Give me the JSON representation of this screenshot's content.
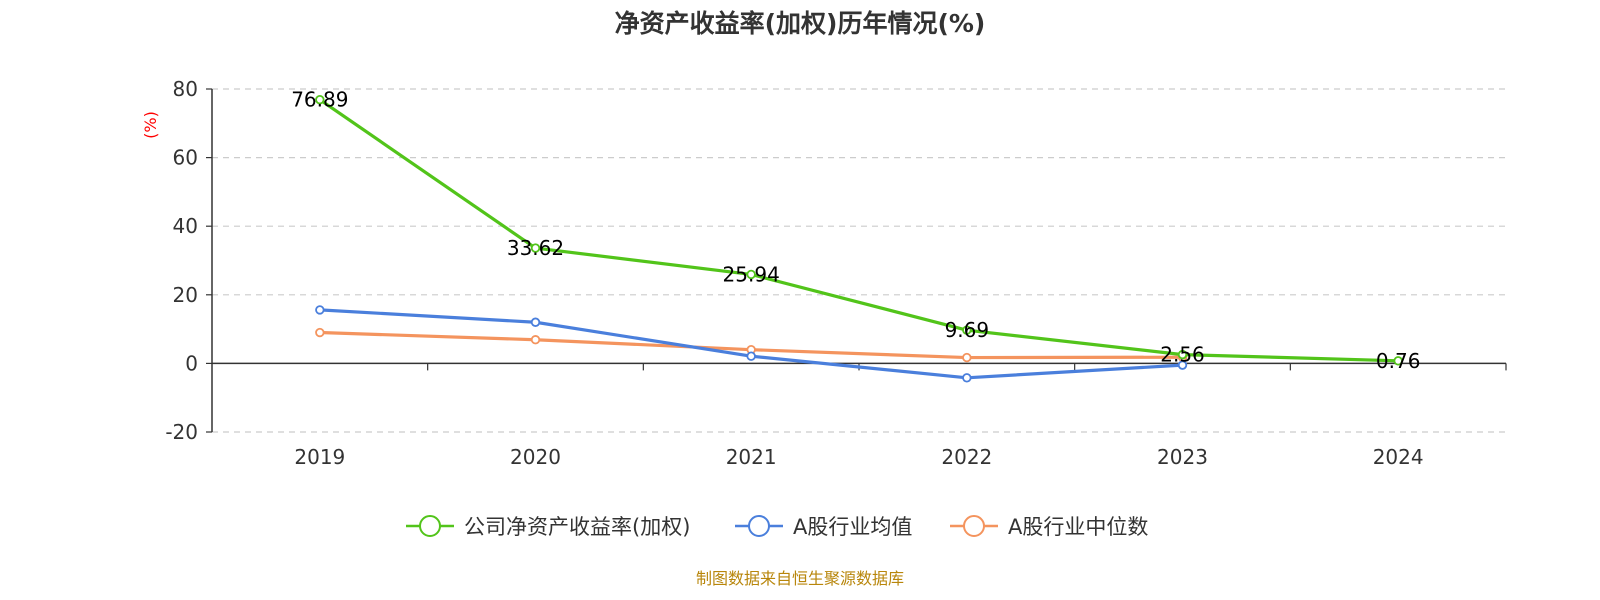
{
  "chart_data": {
    "type": "line",
    "title": "净资产收益率(加权)历年情况(%)",
    "ylabel": "(%)",
    "xlabel": "",
    "categories": [
      "2019",
      "2020",
      "2021",
      "2022",
      "2023",
      "2024"
    ],
    "yticks": [
      -20,
      0,
      20,
      40,
      60,
      80
    ],
    "ylim": [
      -20,
      80
    ],
    "grid": true,
    "legend_position": "bottom",
    "series": [
      {
        "name": "公司净资产收益率(加权)",
        "color": "#52c41a",
        "values": [
          76.89,
          33.62,
          25.94,
          9.69,
          2.56,
          0.76
        ],
        "labels": [
          "76.89",
          "33.62",
          "25.94",
          "9.69",
          "2.56",
          "0.76"
        ]
      },
      {
        "name": "A股行业均值",
        "color": "#4a7fdc",
        "values": [
          15.6,
          12.0,
          2.1,
          -4.2,
          -0.5,
          null
        ]
      },
      {
        "name": "A股行业中位数",
        "color": "#f4945e",
        "values": [
          9.0,
          6.9,
          4.0,
          1.7,
          1.8,
          null
        ]
      }
    ]
  },
  "footer": {
    "source": "制图数据来自恒生聚源数据库"
  }
}
